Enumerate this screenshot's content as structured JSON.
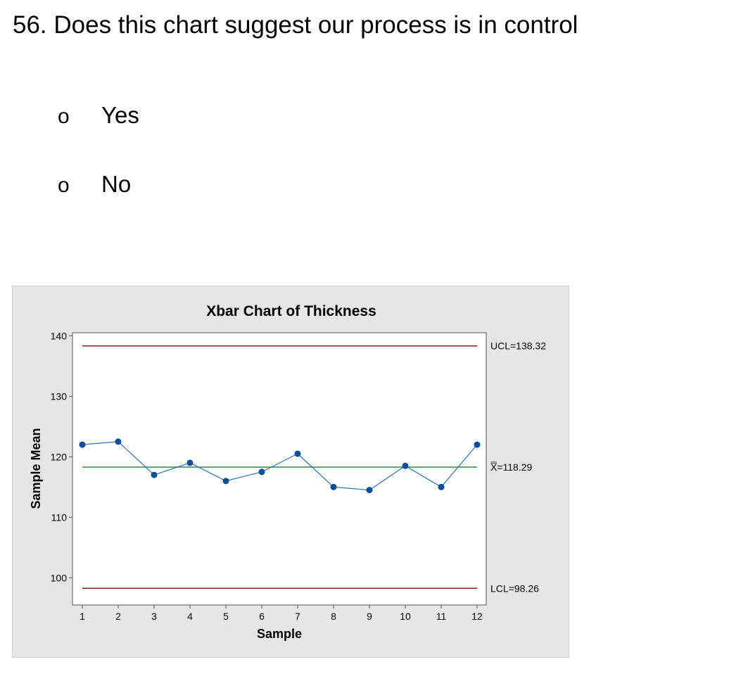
{
  "question": {
    "text": "56. Does this chart suggest our process is in control"
  },
  "options": [
    {
      "bullet": "o",
      "label": "Yes"
    },
    {
      "bullet": "o",
      "label": "No"
    }
  ],
  "colors": {
    "panel_bg": "#e6e6e6",
    "plot_bg": "#ffffff",
    "data_line": "#2e6fb5",
    "data_point": "#0b4f9c",
    "center_line": "#2e8b3a",
    "control_limit": "#8b1a1a"
  },
  "chart_data": {
    "type": "line",
    "title": "Xbar Chart of Thickness",
    "xlabel": "Sample",
    "ylabel": "Sample Mean",
    "x": [
      1,
      2,
      3,
      4,
      5,
      6,
      7,
      8,
      9,
      10,
      11,
      12
    ],
    "series": [
      {
        "values": [
          122.0,
          122.5,
          117.0,
          119.0,
          116.0,
          117.5,
          120.5,
          115.0,
          114.5,
          118.5,
          115.0,
          122.0
        ]
      }
    ],
    "ylim": [
      95.5,
      140.5
    ],
    "yticks": [
      100,
      110,
      120,
      130,
      140
    ],
    "control_lines": [
      {
        "label": "UCL=138.32",
        "value": 138.32,
        "kind": "limit"
      },
      {
        "label": "X̿=118.29",
        "value": 118.29,
        "kind": "center"
      },
      {
        "label": "LCL=98.26",
        "value": 98.26,
        "kind": "limit"
      }
    ],
    "grid": false,
    "legend": "none"
  }
}
